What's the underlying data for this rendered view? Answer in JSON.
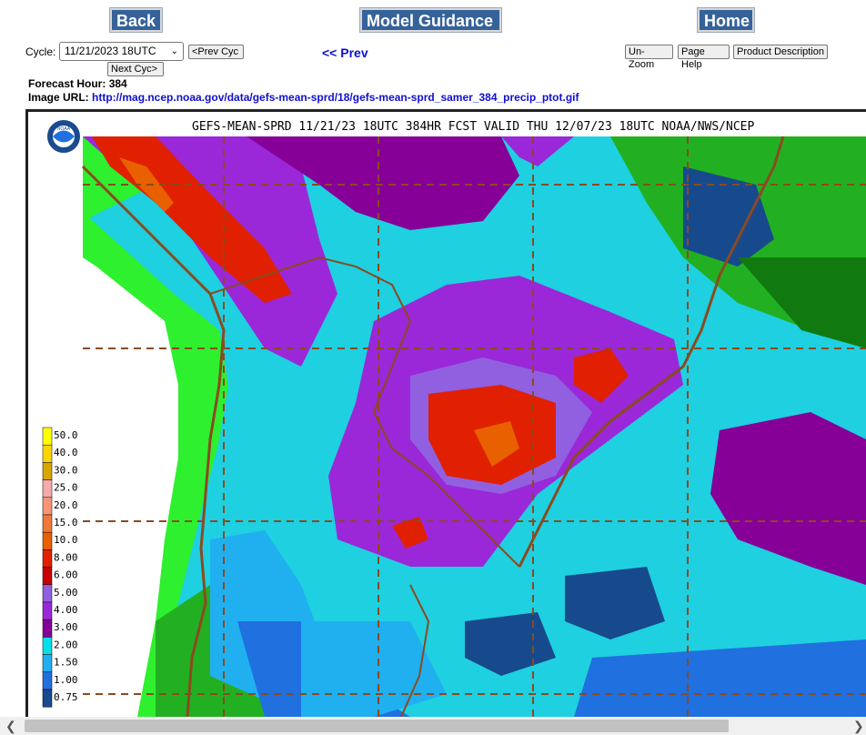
{
  "nav": {
    "back_label": "Back",
    "model_label": "Model Guidance",
    "home_label": "Home"
  },
  "cycle": {
    "label": "Cycle:",
    "selected": "11/21/2023 18UTC",
    "prev_cyc": "<Prev Cyc",
    "next_cyc": "Next Cyc>"
  },
  "prev_link": "<< Prev",
  "tools": {
    "unzoom": "Un-Zoom",
    "help": "Page Help",
    "desc": "Product Description"
  },
  "forecast": {
    "label": "Forecast Hour:",
    "value": "384"
  },
  "image": {
    "label": "Image URL:",
    "url": "http://mag.ncep.noaa.gov/data/gefs-mean-sprd/18/gefs-mean-sprd_samer_384_precip_ptot.gif"
  },
  "map": {
    "title": "GEFS-MEAN-SPRD 11/21/23 18UTC 384HR FCST VALID THU 12/07/23 18UTC NOAA/NWS/NCEP",
    "legend": [
      {
        "label": "50.0",
        "color": "#ffff00"
      },
      {
        "label": "40.0",
        "color": "#ffd500"
      },
      {
        "label": "30.0",
        "color": "#d6a700"
      },
      {
        "label": "25.0",
        "color": "#f6aaaa"
      },
      {
        "label": "20.0",
        "color": "#f69478"
      },
      {
        "label": "15.0",
        "color": "#f07838"
      },
      {
        "label": "10.0",
        "color": "#e86000"
      },
      {
        "label": "8.00",
        "color": "#e02000"
      },
      {
        "label": "6.00",
        "color": "#c80000"
      },
      {
        "label": "5.00",
        "color": "#9060e0"
      },
      {
        "label": "4.00",
        "color": "#9a28d8"
      },
      {
        "label": "3.00",
        "color": "#860098"
      },
      {
        "label": "2.00",
        "color": "#00e0e8"
      },
      {
        "label": "1.50",
        "color": "#20b0f0"
      },
      {
        "label": "1.00",
        "color": "#2070e0"
      },
      {
        "label": "0.75",
        "color": "#1a4a90"
      }
    ],
    "colors": {
      "land_white": "#ffffff",
      "bright_green": "#2ef02e",
      "green": "#22b022",
      "dark_green": "#107a10",
      "navy": "#174a8c",
      "ocean_cyan": "#1ed0e0",
      "border": "#8b4a20"
    }
  }
}
